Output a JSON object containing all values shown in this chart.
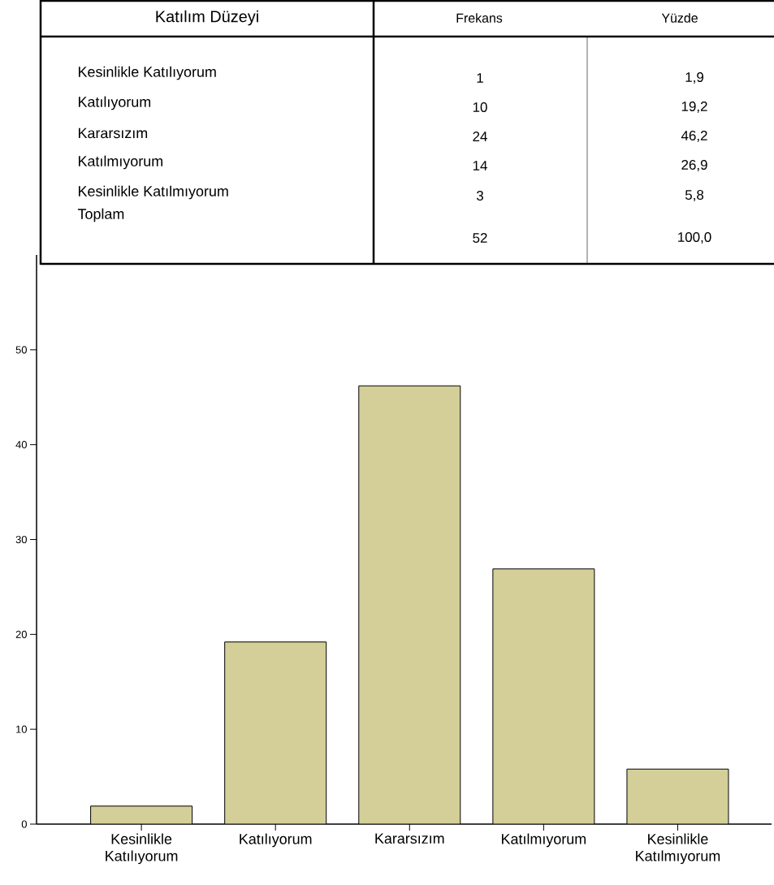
{
  "chart_data": [
    {
      "type": "other",
      "title": "Katılım Düzeyi",
      "categories": [
        "Kesinlikle Katılıyorum",
        "Katılıyorum",
        "Kararsızım",
        "Katılmıyorum",
        "Kesinlikle Katılmıyorum",
        "Toplam"
      ],
      "annotations": [
        "Frekans",
        "Yüzde",
        "1",
        "1,9",
        "10",
        "19,2",
        "24",
        "46,2",
        "14",
        "26,9",
        "3",
        "5,8",
        "52",
        "100,0"
      ]
    },
    {
      "type": "bar",
      "categories": [
        "Kesinlikle Katılıyorum",
        "Katılıyorum",
        "Kararsızım",
        "Katılmıyorum",
        "Kesinlikle Katılmıyorum"
      ],
      "values": [
        1.9,
        19.2,
        46.2,
        26.9,
        5.8
      ],
      "color": "#d4cf98",
      "ylim": [
        0,
        60
      ],
      "yticks": [
        0,
        10,
        20,
        30,
        40,
        50
      ],
      "grid": false
    }
  ]
}
